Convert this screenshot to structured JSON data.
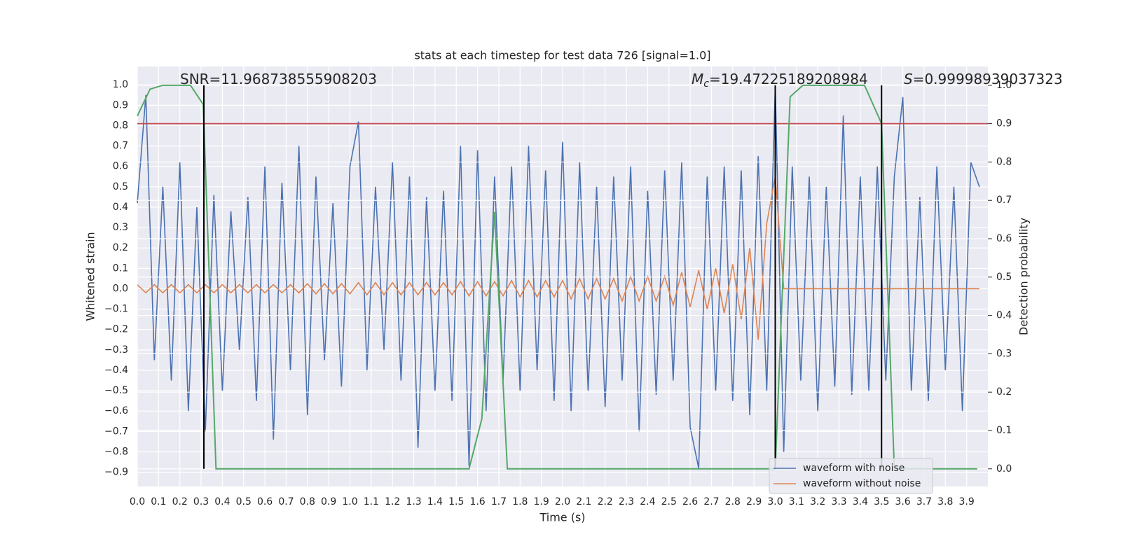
{
  "chart_data": {
    "type": "line",
    "title": "stats at each timestep for test data 726 [signal=1.0]",
    "xlabel": "Time (s)",
    "ylabel": "Whitened strain",
    "y2label": "Detection probability",
    "xlim": [
      0,
      4
    ],
    "ylim": [
      -0.97,
      1.09
    ],
    "y2lim": [
      -0.046,
      1.049
    ],
    "grid": true,
    "legend": "lower right",
    "xticks": [
      {
        "value": 0,
        "label": "0.0"
      },
      0.1,
      0.2,
      0.3,
      0.4,
      0.5,
      0.6,
      0.7,
      0.8,
      0.9,
      {
        "value": 1,
        "label": "1.0"
      },
      1.1,
      1.2,
      1.3,
      1.4,
      1.5,
      1.6,
      1.7,
      1.8,
      1.9,
      {
        "value": 2,
        "label": "2.0"
      },
      2.1,
      2.2,
      2.3,
      2.4,
      2.5,
      2.6,
      2.7,
      2.8,
      2.9,
      {
        "value": 3,
        "label": "3.0"
      },
      3.1,
      3.2,
      3.3,
      3.4,
      3.5,
      3.6,
      3.7,
      3.8,
      3.9
    ],
    "yticks": [
      {
        "value": -0.9,
        "label": "−0.9"
      },
      {
        "value": -0.8,
        "label": "−0.8"
      },
      {
        "value": -0.7,
        "label": "−0.7"
      },
      {
        "value": -0.6,
        "label": "−0.6"
      },
      {
        "value": -0.5,
        "label": "−0.5"
      },
      {
        "value": -0.4,
        "label": "−0.4"
      },
      {
        "value": -0.3,
        "label": "−0.3"
      },
      {
        "value": -0.2,
        "label": "−0.2"
      },
      {
        "value": -0.1,
        "label": "−0.1"
      },
      {
        "value": 0,
        "label": "0.0"
      },
      0.1,
      0.2,
      0.3,
      0.4,
      0.5,
      0.6,
      0.7,
      0.8,
      0.9,
      {
        "value": 1,
        "label": "1.0"
      }
    ],
    "y2ticks": [
      {
        "value": 0,
        "label": "0.0"
      },
      0.1,
      0.2,
      0.3,
      0.4,
      0.5,
      0.6,
      0.7,
      0.8,
      0.9,
      {
        "value": 1,
        "label": "1.0"
      }
    ],
    "x": [
      0,
      0.04,
      0.08,
      0.12,
      0.16,
      0.2,
      0.24,
      0.28,
      0.32,
      0.36,
      0.4,
      0.44,
      0.48,
      0.52,
      0.56,
      0.6,
      0.64,
      0.68,
      0.72,
      0.76,
      0.8,
      0.84,
      0.88,
      0.92,
      0.96,
      1,
      1.04,
      1.08,
      1.12,
      1.16,
      1.2,
      1.24,
      1.28,
      1.32,
      1.36,
      1.4,
      1.44,
      1.48,
      1.52,
      1.56,
      1.6,
      1.64,
      1.68,
      1.72,
      1.76,
      1.8,
      1.84,
      1.88,
      1.92,
      1.96,
      2,
      2.04,
      2.08,
      2.12,
      2.16,
      2.2,
      2.24,
      2.28,
      2.32,
      2.36,
      2.4,
      2.44,
      2.48,
      2.52,
      2.56,
      2.6,
      2.64,
      2.68,
      2.72,
      2.76,
      2.8,
      2.84,
      2.88,
      2.92,
      2.96,
      3,
      3.04,
      3.08,
      3.12,
      3.16,
      3.2,
      3.24,
      3.28,
      3.32,
      3.36,
      3.4,
      3.44,
      3.48,
      3.52,
      3.56,
      3.6,
      3.64,
      3.68,
      3.72,
      3.76,
      3.8,
      3.84,
      3.88,
      3.92,
      3.96
    ],
    "series": [
      {
        "name": "waveform with noise",
        "color": "#4c72b0",
        "values": [
          0.42,
          0.95,
          -0.35,
          0.5,
          -0.45,
          0.62,
          -0.6,
          0.4,
          -0.7,
          0.46,
          -0.5,
          0.38,
          -0.3,
          0.45,
          -0.55,
          0.6,
          -0.74,
          0.52,
          -0.4,
          0.7,
          -0.62,
          0.55,
          -0.35,
          0.42,
          -0.48,
          0.6,
          0.82,
          -0.4,
          0.5,
          -0.3,
          0.62,
          -0.45,
          0.55,
          -0.78,
          0.45,
          -0.5,
          0.48,
          -0.55,
          0.7,
          -0.87,
          0.68,
          -0.6,
          0.55,
          -0.45,
          0.6,
          -0.5,
          0.7,
          -0.4,
          0.58,
          -0.55,
          0.72,
          -0.6,
          0.62,
          -0.5,
          0.5,
          -0.58,
          0.55,
          -0.45,
          0.6,
          -0.7,
          0.48,
          -0.52,
          0.58,
          -0.45,
          0.62,
          -0.68,
          -0.88,
          0.55,
          -0.5,
          0.6,
          -0.55,
          0.58,
          -0.62,
          0.65,
          -0.5,
          0.99,
          -0.8,
          0.6,
          -0.45,
          0.55,
          -0.6,
          0.5,
          -0.48,
          0.85,
          -0.52,
          0.55,
          -0.5,
          0.6,
          -0.45,
          0.55,
          0.94,
          -0.5,
          0.45,
          -0.55,
          0.6,
          -0.4,
          0.5,
          -0.6,
          0.62,
          0.5
        ]
      },
      {
        "name": "waveform without noise",
        "color": "#dd8452",
        "values": [
          0.02,
          -0.02,
          0.02,
          -0.02,
          0.02,
          -0.02,
          0.02,
          -0.02,
          0.02,
          -0.02,
          0.02,
          -0.02,
          0.02,
          -0.02,
          0.02,
          -0.02,
          0.02,
          -0.02,
          0.02,
          -0.02,
          0.025,
          -0.025,
          0.025,
          -0.025,
          0.025,
          -0.025,
          0.03,
          -0.03,
          0.03,
          -0.03,
          0.03,
          -0.03,
          0.03,
          -0.03,
          0.03,
          -0.03,
          0.03,
          -0.03,
          0.035,
          -0.035,
          0.035,
          -0.035,
          0.035,
          -0.035,
          0.04,
          -0.04,
          0.04,
          -0.04,
          0.04,
          -0.04,
          0.04,
          -0.05,
          0.05,
          -0.05,
          0.05,
          -0.05,
          0.05,
          -0.06,
          0.06,
          -0.06,
          0.06,
          -0.06,
          0.06,
          -0.08,
          0.08,
          -0.09,
          0.09,
          -0.1,
          0.1,
          -0.12,
          0.12,
          -0.15,
          0.2,
          -0.25,
          0.32,
          0.55,
          0,
          0,
          0,
          0,
          0,
          0,
          0,
          0,
          0,
          0,
          0,
          0,
          0,
          0,
          0,
          0,
          0,
          0,
          0,
          0,
          0,
          0,
          0,
          0
        ]
      },
      {
        "color": "#55a868",
        "axis": "y2",
        "x": [
          0,
          0.06,
          0.12,
          0.25,
          0.31,
          0.37,
          0.43,
          1.56,
          1.62,
          1.68,
          1.74,
          1.8,
          3.0,
          3.07,
          3.13,
          3.42,
          3.5,
          3.56,
          3.95
        ],
        "values": [
          0.92,
          0.99,
          1.0,
          1.0,
          0.95,
          0.0,
          0.0,
          0.0,
          0.13,
          0.67,
          0.0,
          0.0,
          0.0,
          0.97,
          1.0,
          1.0,
          0.9,
          0.0,
          0.0
        ]
      }
    ],
    "threshold": {
      "value": 0.9,
      "axis": "y2",
      "color": "#c44e52"
    },
    "vlines": {
      "x": [
        0.313,
        3.0,
        3.5
      ],
      "ymin": 0,
      "ymax": 1,
      "axis": "y2",
      "color": "#000000"
    },
    "annotations": [
      {
        "text": "SNR=11.968738555908203"
      },
      {
        "symbol": "M",
        "subscript": "c",
        "text": "=19.47225189208984"
      },
      {
        "symbol": "S",
        "text": "=0.99998939037323"
      }
    ]
  }
}
